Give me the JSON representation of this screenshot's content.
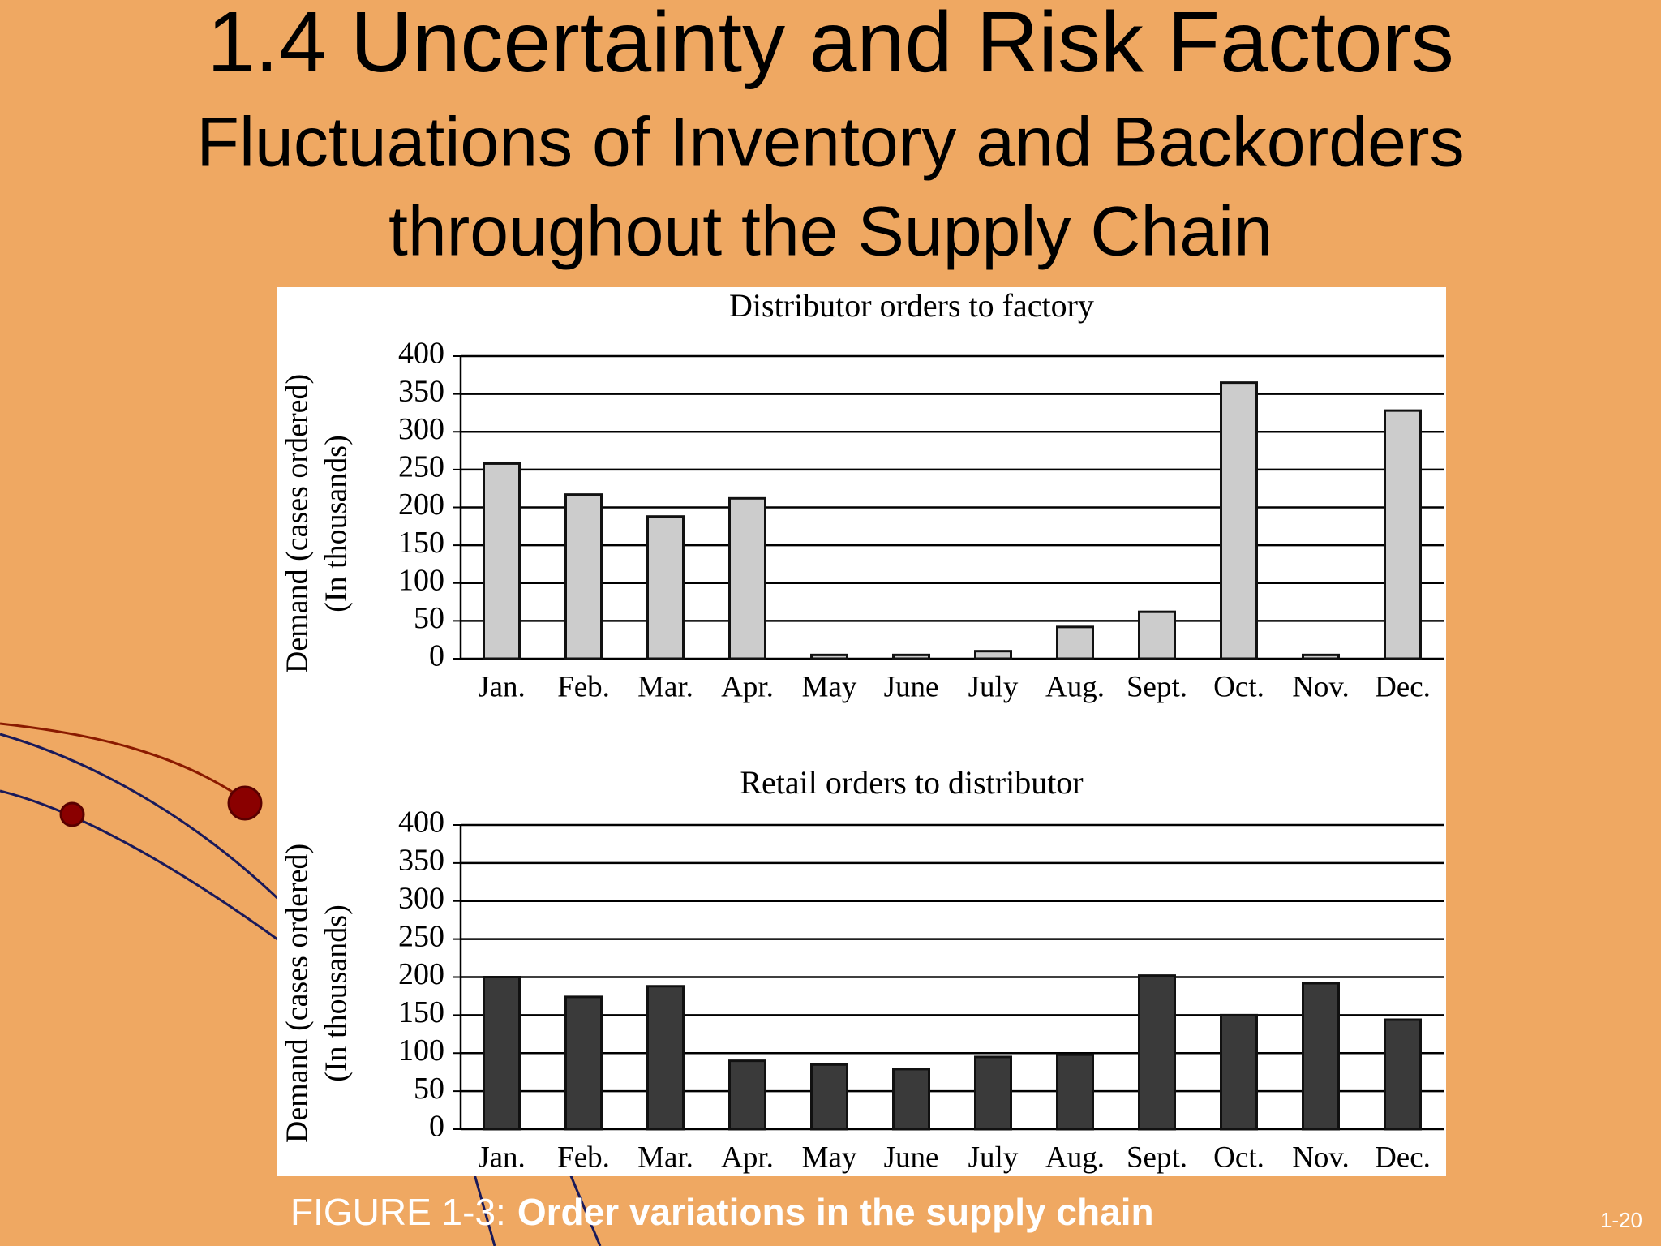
{
  "title": "1.4 Uncertainty and Risk Factors",
  "subtitle": [
    "Fluctuations of Inventory and Backorders",
    "throughout the Supply Chain"
  ],
  "chart_data": [
    {
      "type": "bar",
      "title": "Distributor orders to factory",
      "ylabel": [
        "Demand (cases ordered)",
        "(In thousands)"
      ],
      "categories": [
        "Jan.",
        "Feb.",
        "Mar.",
        "Apr.",
        "May",
        "June",
        "July",
        "Aug.",
        "Sept.",
        "Oct.",
        "Nov.",
        "Dec."
      ],
      "values": [
        258,
        217,
        188,
        212,
        5,
        5,
        10,
        42,
        62,
        365,
        5,
        328
      ],
      "color": "#cccccc",
      "ylim": [
        0,
        400
      ],
      "yticks": [
        0,
        50,
        100,
        150,
        200,
        250,
        300,
        350,
        400
      ],
      "grid": true
    },
    {
      "type": "bar",
      "title": "Retail orders to distributor",
      "ylabel": [
        "Demand (cases ordered)",
        "(In thousands)"
      ],
      "categories": [
        "Jan.",
        "Feb.",
        "Mar.",
        "Apr.",
        "May",
        "June",
        "July",
        "Aug.",
        "Sept.",
        "Oct.",
        "Nov.",
        "Dec."
      ],
      "values": [
        200,
        174,
        188,
        90,
        85,
        79,
        95,
        98,
        202,
        150,
        192,
        144
      ],
      "color": "#3a3a3a",
      "ylim": [
        0,
        400
      ],
      "yticks": [
        0,
        50,
        100,
        150,
        200,
        250,
        300,
        350,
        400
      ],
      "grid": true
    }
  ],
  "caption": {
    "label": "FIGURE 1-3:",
    "text": "Order variations in the supply chain"
  },
  "page_number": "1-20"
}
